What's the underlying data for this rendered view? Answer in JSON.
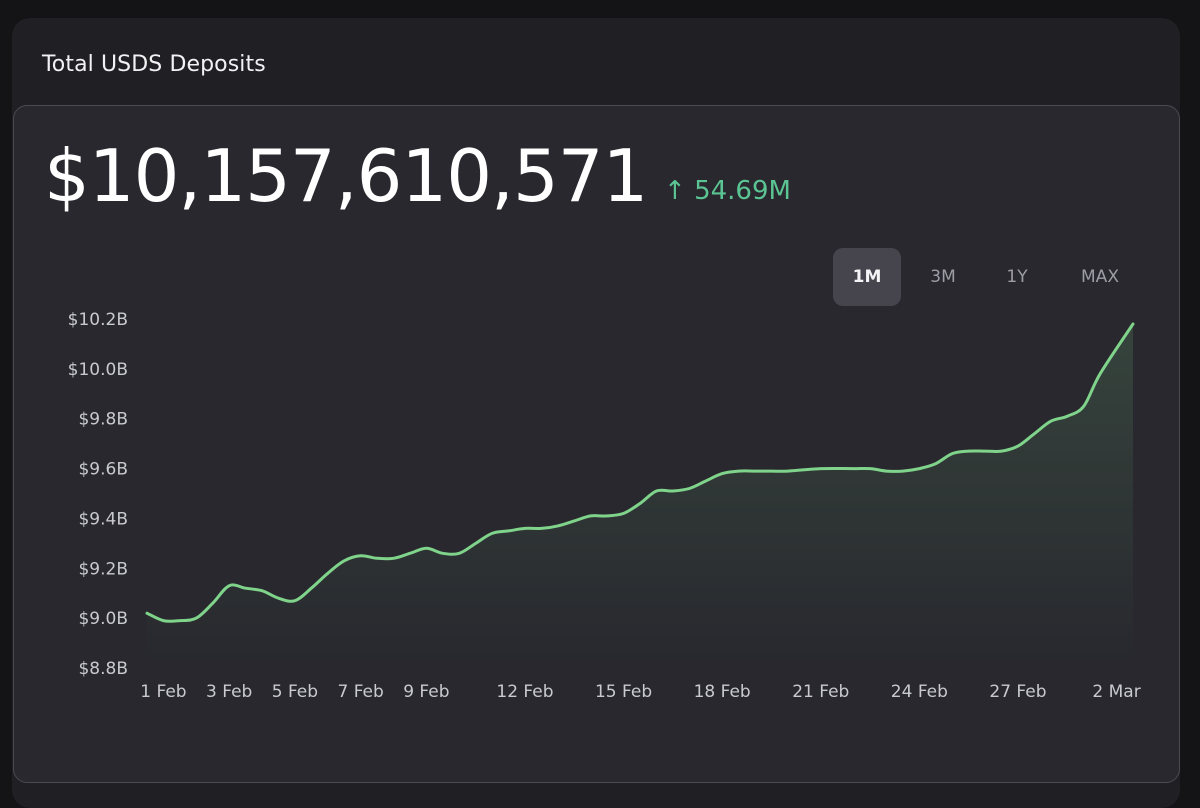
{
  "card": {
    "title": "Total USDS Deposits"
  },
  "summary": {
    "value": "$10,157,610,571",
    "change_arrow": "↑",
    "change": "54.69M"
  },
  "range_tabs": [
    {
      "label": "1M",
      "active": true
    },
    {
      "label": "3M",
      "active": false
    },
    {
      "label": "1Y",
      "active": false
    },
    {
      "label": "MAX",
      "active": false
    }
  ],
  "colors": {
    "line": "#7fd38a",
    "accent": "#5bc493"
  },
  "chart_data": {
    "type": "area",
    "title": "Total USDS Deposits",
    "xlabel": "",
    "ylabel": "",
    "ylim": [
      8.8,
      10.25
    ],
    "y_ticks": [
      {
        "value": 10.2,
        "label": "$10.2B"
      },
      {
        "value": 10.0,
        "label": "$10.0B"
      },
      {
        "value": 9.8,
        "label": "$9.8B"
      },
      {
        "value": 9.6,
        "label": "$9.6B"
      },
      {
        "value": 9.4,
        "label": "$9.4B"
      },
      {
        "value": 9.2,
        "label": "$9.2B"
      },
      {
        "value": 9.0,
        "label": "$9.0B"
      },
      {
        "value": 8.8,
        "label": "$8.8B"
      }
    ],
    "x_ticks": [
      {
        "day": 1,
        "label": "1 Feb"
      },
      {
        "day": 3,
        "label": "3 Feb"
      },
      {
        "day": 5,
        "label": "5 Feb"
      },
      {
        "day": 7,
        "label": "7 Feb"
      },
      {
        "day": 9,
        "label": "9 Feb"
      },
      {
        "day": 12,
        "label": "12 Feb"
      },
      {
        "day": 15,
        "label": "15 Feb"
      },
      {
        "day": 18,
        "label": "18 Feb"
      },
      {
        "day": 21,
        "label": "21 Feb"
      },
      {
        "day": 24,
        "label": "24 Feb"
      },
      {
        "day": 27,
        "label": "27 Feb"
      },
      {
        "day": 30,
        "label": "2 Mar"
      }
    ],
    "x_domain": [
      0.5,
      30.5
    ],
    "series": [
      {
        "name": "Total USDS Deposits ($B)",
        "points": [
          [
            0.5,
            9.02
          ],
          [
            1.0,
            8.99
          ],
          [
            1.5,
            8.99
          ],
          [
            2.0,
            9.0
          ],
          [
            2.5,
            9.06
          ],
          [
            3.0,
            9.13
          ],
          [
            3.5,
            9.12
          ],
          [
            4.0,
            9.11
          ],
          [
            4.5,
            9.08
          ],
          [
            5.0,
            9.07
          ],
          [
            5.5,
            9.12
          ],
          [
            6.0,
            9.18
          ],
          [
            6.5,
            9.23
          ],
          [
            7.0,
            9.25
          ],
          [
            7.5,
            9.24
          ],
          [
            8.0,
            9.24
          ],
          [
            8.5,
            9.26
          ],
          [
            9.0,
            9.28
          ],
          [
            9.5,
            9.26
          ],
          [
            10.0,
            9.26
          ],
          [
            10.5,
            9.3
          ],
          [
            11.0,
            9.34
          ],
          [
            11.5,
            9.35
          ],
          [
            12.0,
            9.36
          ],
          [
            12.5,
            9.36
          ],
          [
            13.0,
            9.37
          ],
          [
            13.5,
            9.39
          ],
          [
            14.0,
            9.41
          ],
          [
            14.5,
            9.41
          ],
          [
            15.0,
            9.42
          ],
          [
            15.5,
            9.46
          ],
          [
            16.0,
            9.51
          ],
          [
            16.5,
            9.51
          ],
          [
            17.0,
            9.52
          ],
          [
            17.5,
            9.55
          ],
          [
            18.0,
            9.58
          ],
          [
            18.5,
            9.59
          ],
          [
            19.0,
            9.59
          ],
          [
            19.5,
            9.59
          ],
          [
            20.0,
            9.59
          ],
          [
            21.0,
            9.6
          ],
          [
            22.0,
            9.6
          ],
          [
            22.5,
            9.6
          ],
          [
            23.0,
            9.59
          ],
          [
            23.5,
            9.59
          ],
          [
            24.0,
            9.6
          ],
          [
            24.5,
            9.62
          ],
          [
            25.0,
            9.66
          ],
          [
            25.5,
            9.67
          ],
          [
            26.0,
            9.67
          ],
          [
            26.5,
            9.67
          ],
          [
            27.0,
            9.69
          ],
          [
            27.5,
            9.74
          ],
          [
            28.0,
            9.79
          ],
          [
            28.5,
            9.81
          ],
          [
            29.0,
            9.85
          ],
          [
            29.5,
            9.98
          ],
          [
            30.5,
            10.18
          ]
        ]
      }
    ]
  }
}
